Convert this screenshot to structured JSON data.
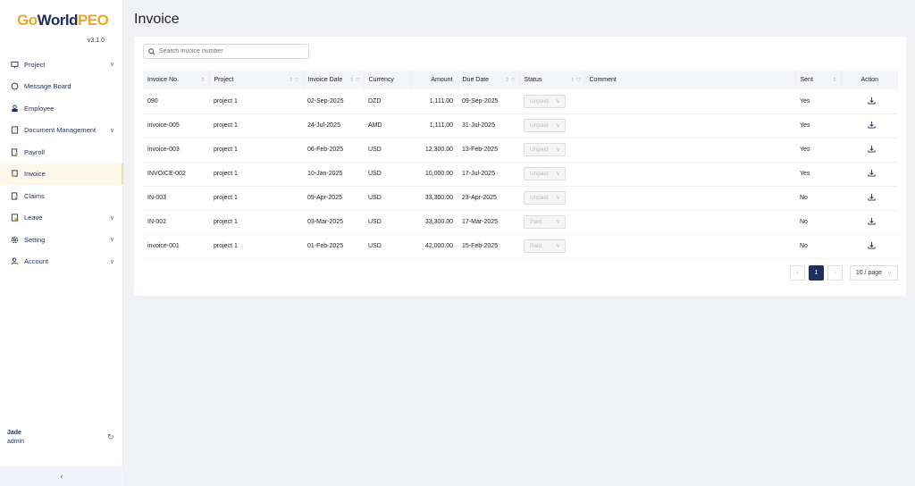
{
  "sidebar": {
    "logo": "GoWorldPEO",
    "version": "v3.1.0",
    "items": [
      {
        "label": "Project",
        "icon": "monitor-icon",
        "chevron": true
      },
      {
        "label": "Message Board",
        "icon": "chat-icon",
        "chevron": false
      },
      {
        "label": "Employee",
        "icon": "user-lock-icon",
        "chevron": false
      },
      {
        "label": "Document Management",
        "icon": "document-icon",
        "chevron": true
      },
      {
        "label": "Payroll",
        "icon": "payroll-icon",
        "chevron": false
      },
      {
        "label": "Invoice",
        "icon": "invoice-icon",
        "chevron": false,
        "active": true
      },
      {
        "label": "Claims",
        "icon": "claims-icon",
        "chevron": false
      },
      {
        "label": "Leave",
        "icon": "leave-icon",
        "chevron": true
      },
      {
        "label": "Setting",
        "icon": "gear-icon",
        "chevron": true
      },
      {
        "label": "Account",
        "icon": "account-icon",
        "chevron": true
      }
    ],
    "user": {
      "name": "Jade",
      "role": "admin"
    }
  },
  "page": {
    "title": "Invoice",
    "search_placeholder": "Search invoice number"
  },
  "table": {
    "columns": [
      {
        "label": "Invoice No.",
        "sort": true,
        "filter": false
      },
      {
        "label": "Project",
        "sort": true,
        "filter": true
      },
      {
        "label": "Invoice Date",
        "sort": true,
        "filter": true
      },
      {
        "label": "Currency",
        "sort": false,
        "filter": false
      },
      {
        "label": "Amount",
        "sort": false,
        "filter": false,
        "align": "right"
      },
      {
        "label": "Due Date",
        "sort": true,
        "filter": true
      },
      {
        "label": "Status",
        "sort": true,
        "filter": true
      },
      {
        "label": "Comment",
        "sort": false,
        "filter": false
      },
      {
        "label": "Sent",
        "sort": true,
        "filter": false
      },
      {
        "label": "Action",
        "sort": false,
        "filter": false,
        "align": "center"
      }
    ],
    "rows": [
      [
        "090",
        "project 1",
        "02-Sep-2025",
        "DZD",
        "1,111.00",
        "09-Sep-2025",
        "Unpaid",
        "",
        "Yes"
      ],
      [
        "invoice-005",
        "project 1",
        "24-Jul-2025",
        "AMD",
        "1,111.00",
        "31-Jul-2025",
        "Unpaid",
        "",
        "Yes"
      ],
      [
        "invoice-003",
        "project 1",
        "06-Feb-2025",
        "USD",
        "12,300.00",
        "13-Feb-2025",
        "Unpaid",
        "",
        "Yes"
      ],
      [
        "INVOICE-002",
        "project 1",
        "10-Jan-2025",
        "USD",
        "10,000.00",
        "17-Jul-2025",
        "Unpaid",
        "",
        "Yes"
      ],
      [
        "IN-003",
        "project 1",
        "09-Apr-2025",
        "USD",
        "33,300.00",
        "23-Apr-2025",
        "Unpaid",
        "",
        "No"
      ],
      [
        "IN-002",
        "project 1",
        "03-Mar-2025",
        "USD",
        "33,300.00",
        "17-Mar-2025",
        "Paid",
        "",
        "No"
      ],
      [
        "invoice-001",
        "project 1",
        "01-Feb-2025",
        "USD",
        "42,000.00",
        "15-Feb-2025",
        "Paid",
        "",
        "No"
      ]
    ]
  },
  "pagination": {
    "current": "1",
    "page_size": "10 / page"
  },
  "colors": {
    "brand_navy": "#1e2f5e",
    "brand_gold": "#e8a82c"
  }
}
